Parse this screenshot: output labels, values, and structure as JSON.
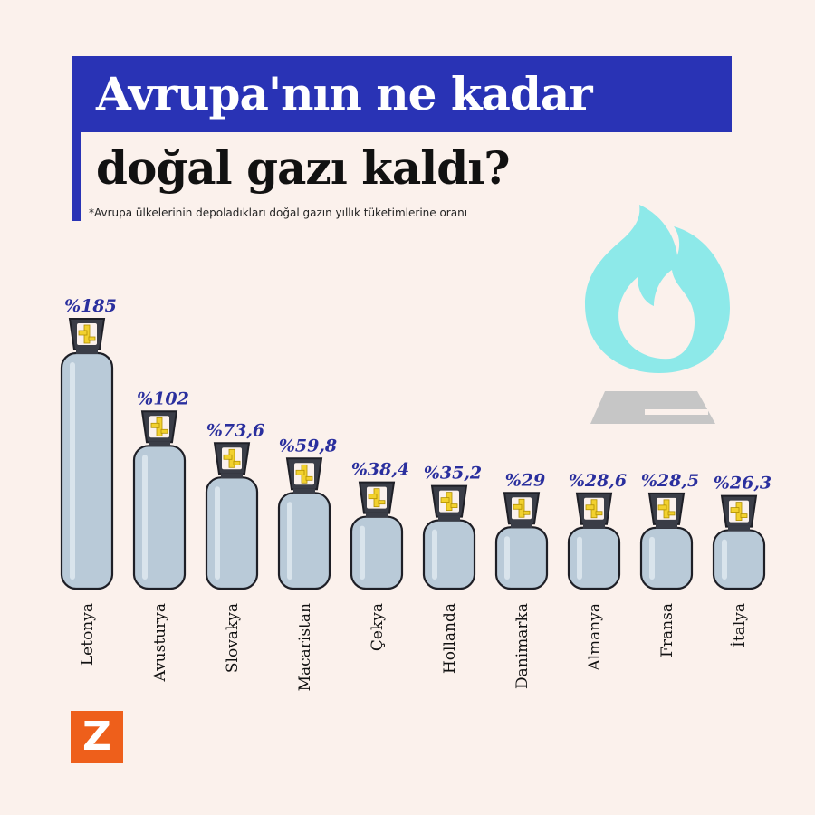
{
  "title_line1": "Avrupa'nın ne kadar",
  "title_line2": "doğal gazı kaldı?",
  "subtitle": "*Avrupa ülkelerinin depoladıkları doğal gazın yıllık tüketimlerine oranı",
  "logo_letter": "Z",
  "colors": {
    "title_bg": "#2933b5",
    "value_label": "#2a2f9e",
    "cylinder_body": "#b9cad8",
    "cylinder_outline": "#1e1f26",
    "valve_yellow": "#f2d12e",
    "valve_cap": "#3a3d47",
    "flame": "#8de9e9",
    "burner": "#c6c6c6",
    "logo_bg": "#ee5f1b",
    "background": "#fbf1ec"
  },
  "icons": [
    "gas-cylinder-icon",
    "gas-flame-icon"
  ],
  "chart_data": {
    "type": "bar",
    "categories": [
      "Letonya",
      "Avusturya",
      "Slovakya",
      "Macaristan",
      "Çekya",
      "Hollanda",
      "Danimarka",
      "Almanya",
      "Fransa",
      "İtalya"
    ],
    "values": [
      185,
      102,
      73.6,
      59.8,
      38.4,
      35.2,
      29,
      28.6,
      28.5,
      26.3
    ],
    "value_labels": [
      "%185",
      "%102",
      "%73,6",
      "%59,8",
      "%38,4",
      "%35,2",
      "%29",
      "%28,6",
      "%28,5",
      "%26,3"
    ],
    "unit": "%",
    "ylim": [
      0,
      185
    ],
    "grid": false,
    "legend": "none"
  }
}
